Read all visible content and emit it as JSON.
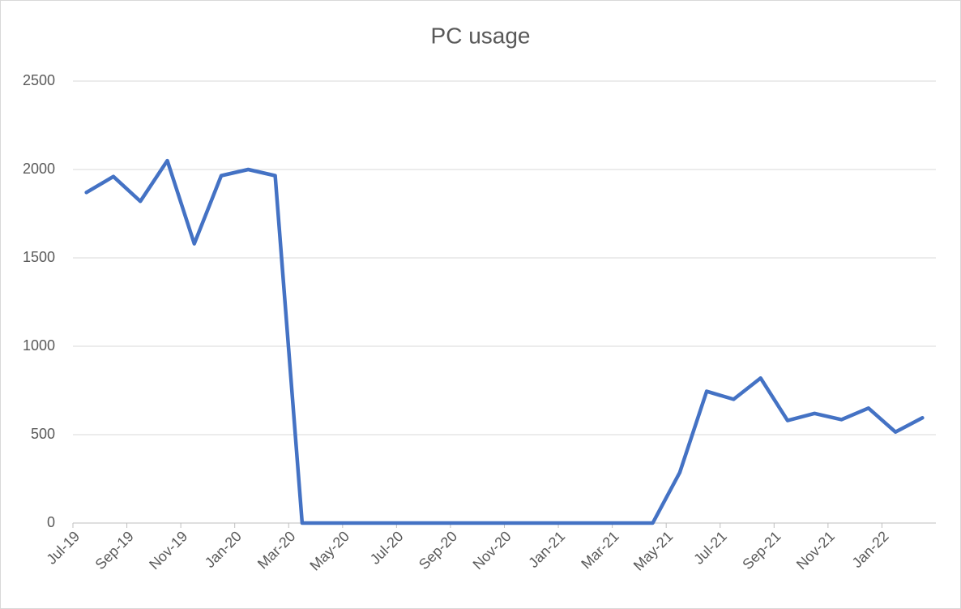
{
  "chart_data": {
    "type": "line",
    "title": "PC usage",
    "categories": [
      "Jul-19",
      null,
      "Sep-19",
      null,
      "Nov-19",
      null,
      "Jan-20",
      null,
      "Mar-20",
      null,
      "May-20",
      null,
      "Jul-20",
      null,
      "Sep-20",
      null,
      "Nov-20",
      null,
      "Jan-21",
      null,
      "Mar-21",
      null,
      "May-21",
      null,
      "Jul-21",
      null,
      "Sep-21",
      null,
      "Nov-21",
      null,
      "Jan-22",
      null
    ],
    "series": [
      {
        "name": "PC usage",
        "color": "#4472c4",
        "values": [
          1870,
          1960,
          1820,
          2050,
          1580,
          1965,
          2000,
          1965,
          0,
          0,
          0,
          0,
          0,
          0,
          0,
          0,
          0,
          0,
          0,
          0,
          0,
          0,
          285,
          745,
          700,
          820,
          580,
          620,
          585,
          650,
          515,
          595
        ]
      }
    ],
    "ylim": [
      0,
      2500
    ],
    "yticks": [
      0,
      500,
      1000,
      1500,
      2000,
      2500
    ],
    "grid": true
  }
}
